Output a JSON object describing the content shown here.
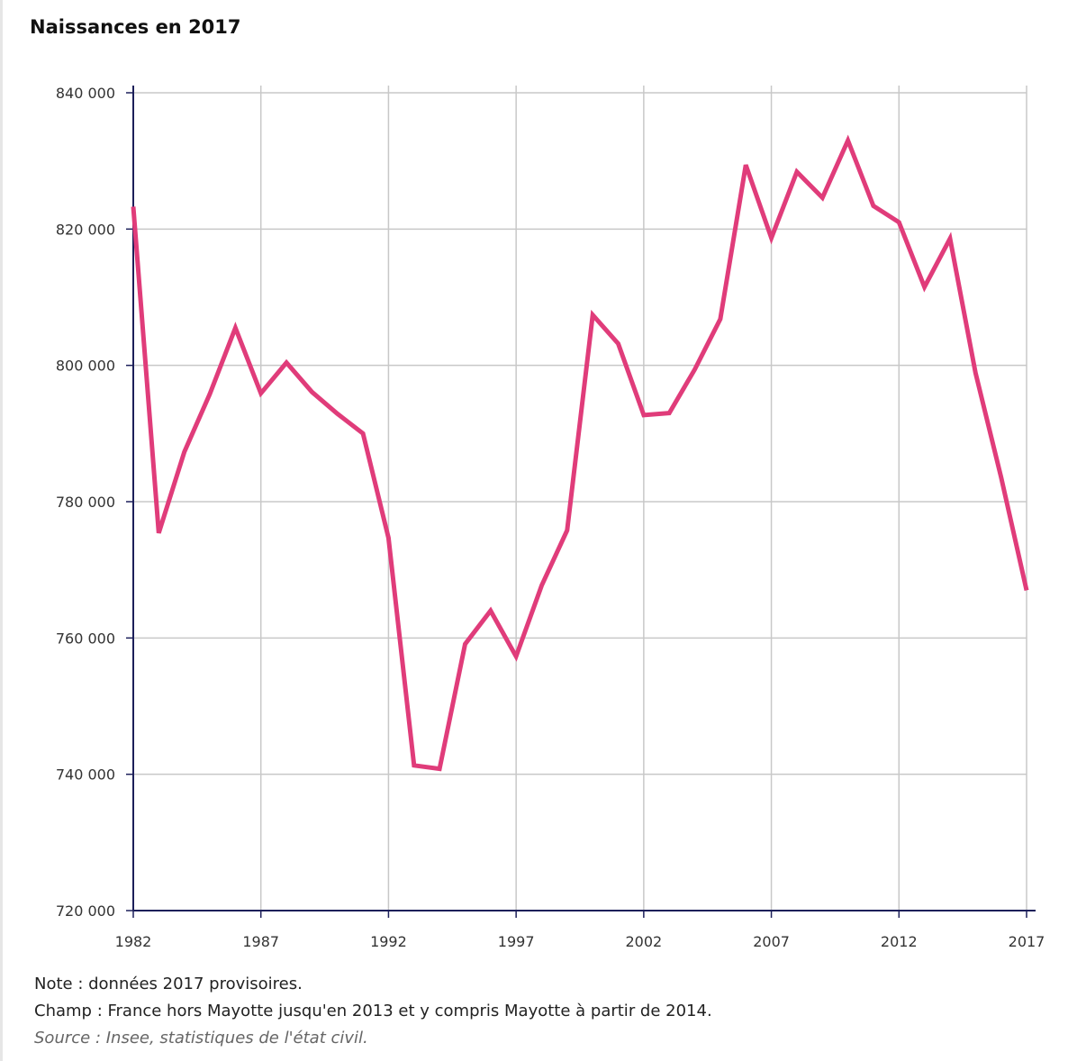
{
  "chart_data": {
    "type": "line",
    "title": "Naissances en 2017",
    "xlabel": "",
    "ylabel": "",
    "x": [
      1982,
      1983,
      1984,
      1985,
      1986,
      1987,
      1988,
      1989,
      1990,
      1991,
      1992,
      1993,
      1994,
      1995,
      1996,
      1997,
      1998,
      1999,
      2000,
      2001,
      2002,
      2003,
      2004,
      2005,
      2006,
      2007,
      2008,
      2009,
      2010,
      2011,
      2012,
      2013,
      2014,
      2015,
      2016,
      2017
    ],
    "series": [
      {
        "name": "",
        "color": "#e03c7a",
        "values": [
          823300,
          775400,
          787300,
          795800,
          805500,
          795900,
          800400,
          796100,
          792900,
          790000,
          774700,
          741300,
          740800,
          759100,
          764000,
          757300,
          767700,
          775800,
          807400,
          803200,
          792700,
          793000,
          799400,
          806800,
          829400,
          818700,
          828400,
          824600,
          833000,
          823400,
          821000,
          811500,
          818600,
          798900,
          783600,
          767000
        ]
      }
    ],
    "xlim": [
      1982,
      2017
    ],
    "ylim": [
      720000,
      840000
    ],
    "x_ticks": [
      1982,
      1987,
      1992,
      1997,
      2002,
      2007,
      2012,
      2017
    ],
    "x_tick_labels": [
      "1982",
      "1987",
      "1992",
      "1997",
      "2002",
      "2007",
      "2012",
      "2017"
    ],
    "y_ticks": [
      720000,
      740000,
      760000,
      780000,
      800000,
      820000,
      840000
    ],
    "y_tick_labels": [
      "720 000",
      "740 000",
      "760 000",
      "780 000",
      "800 000",
      "820 000",
      "840 000"
    ],
    "grid": true,
    "legend": "none",
    "colors": {
      "line": "#e03c7a",
      "grid": "#c8c8c8",
      "axis": "#1c1f5a",
      "text": "#333333"
    }
  },
  "notes": {
    "note": "Note : données 2017 provisoires.",
    "champ": "Champ : France hors Mayotte jusqu'en 2013 et y compris Mayotte à partir de 2014.",
    "source": "Source : Insee, statistiques de l'état civil."
  }
}
